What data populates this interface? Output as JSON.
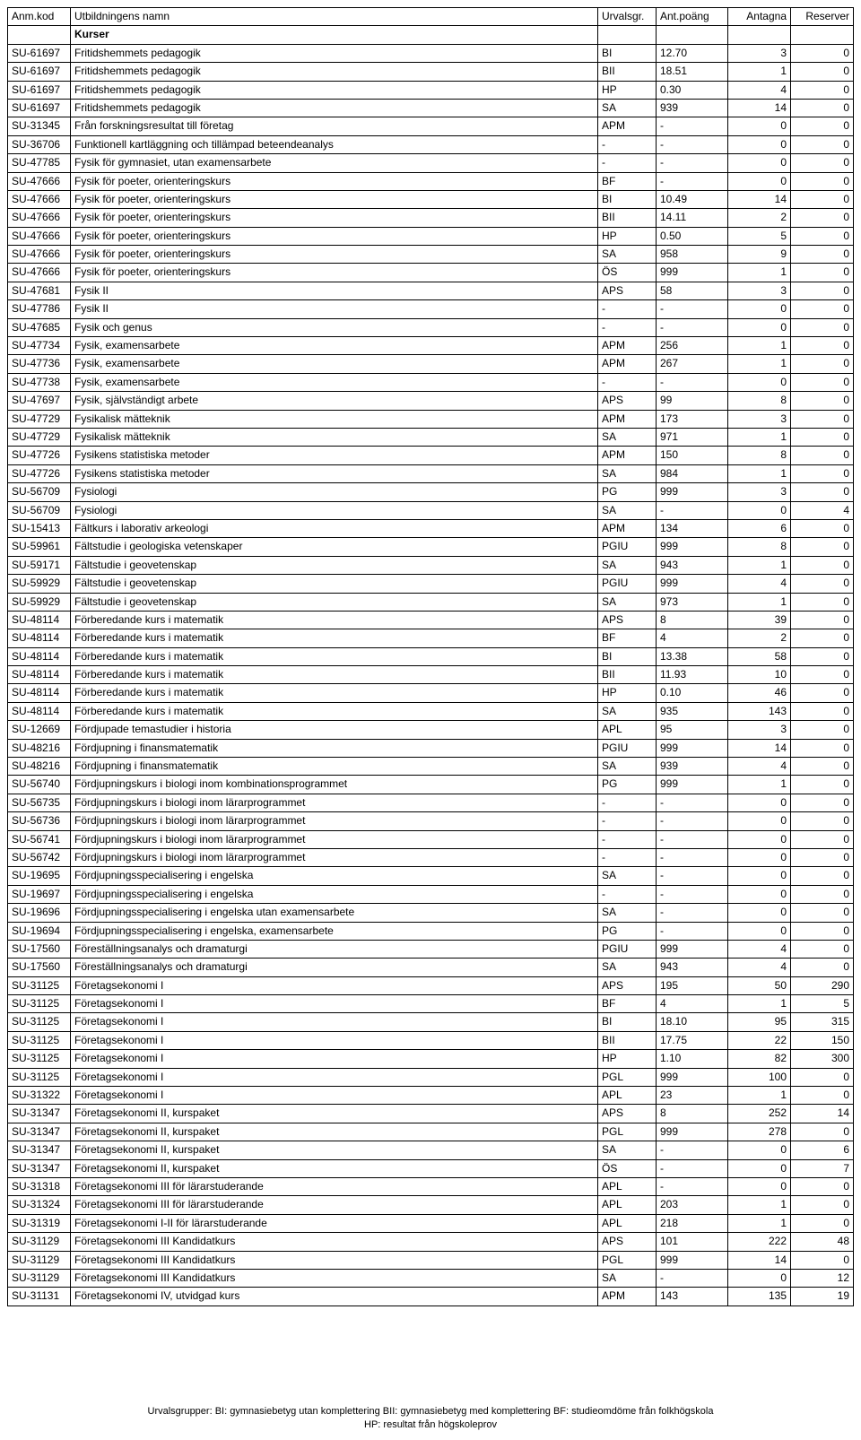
{
  "headers": {
    "code": "Anm.kod",
    "name": "Utbildningens namn",
    "urv": "Urvalsgr.",
    "poang": "Ant.poäng",
    "ant": "Antagna",
    "res": "Reserver"
  },
  "subheader": "Kurser",
  "rows": [
    {
      "code": "SU-61697",
      "name": "Fritidshemmets pedagogik",
      "urv": "BI",
      "poang": "12.70",
      "ant": "3",
      "res": "0"
    },
    {
      "code": "SU-61697",
      "name": "Fritidshemmets pedagogik",
      "urv": "BII",
      "poang": "18.51",
      "ant": "1",
      "res": "0"
    },
    {
      "code": "SU-61697",
      "name": "Fritidshemmets pedagogik",
      "urv": "HP",
      "poang": "0.30",
      "ant": "4",
      "res": "0"
    },
    {
      "code": "SU-61697",
      "name": "Fritidshemmets pedagogik",
      "urv": "SA",
      "poang": "939",
      "ant": "14",
      "res": "0"
    },
    {
      "code": "SU-31345",
      "name": "Från forskningsresultat till företag",
      "urv": "APM",
      "poang": "-",
      "ant": "0",
      "res": "0"
    },
    {
      "code": "SU-36706",
      "name": "Funktionell kartläggning och tillämpad beteendeanalys",
      "urv": "-",
      "poang": "-",
      "ant": "0",
      "res": "0"
    },
    {
      "code": "SU-47785",
      "name": "Fysik för gymnasiet, utan examensarbete",
      "urv": "-",
      "poang": "-",
      "ant": "0",
      "res": "0"
    },
    {
      "code": "SU-47666",
      "name": "Fysik för poeter, orienteringskurs",
      "urv": "BF",
      "poang": "-",
      "ant": "0",
      "res": "0"
    },
    {
      "code": "SU-47666",
      "name": "Fysik för poeter, orienteringskurs",
      "urv": "BI",
      "poang": "10.49",
      "ant": "14",
      "res": "0"
    },
    {
      "code": "SU-47666",
      "name": "Fysik för poeter, orienteringskurs",
      "urv": "BII",
      "poang": "14.11",
      "ant": "2",
      "res": "0"
    },
    {
      "code": "SU-47666",
      "name": "Fysik för poeter, orienteringskurs",
      "urv": "HP",
      "poang": "0.50",
      "ant": "5",
      "res": "0"
    },
    {
      "code": "SU-47666",
      "name": "Fysik för poeter, orienteringskurs",
      "urv": "SA",
      "poang": "958",
      "ant": "9",
      "res": "0"
    },
    {
      "code": "SU-47666",
      "name": "Fysik för poeter, orienteringskurs",
      "urv": "ÖS",
      "poang": "999",
      "ant": "1",
      "res": "0"
    },
    {
      "code": "SU-47681",
      "name": "Fysik II",
      "urv": "APS",
      "poang": "58",
      "ant": "3",
      "res": "0"
    },
    {
      "code": "SU-47786",
      "name": "Fysik II",
      "urv": "-",
      "poang": "-",
      "ant": "0",
      "res": "0"
    },
    {
      "code": "SU-47685",
      "name": "Fysik och genus",
      "urv": "-",
      "poang": "-",
      "ant": "0",
      "res": "0"
    },
    {
      "code": "SU-47734",
      "name": "Fysik, examensarbete",
      "urv": "APM",
      "poang": "256",
      "ant": "1",
      "res": "0"
    },
    {
      "code": "SU-47736",
      "name": "Fysik, examensarbete",
      "urv": "APM",
      "poang": "267",
      "ant": "1",
      "res": "0"
    },
    {
      "code": "SU-47738",
      "name": "Fysik, examensarbete",
      "urv": "-",
      "poang": "-",
      "ant": "0",
      "res": "0"
    },
    {
      "code": "SU-47697",
      "name": "Fysik, självständigt arbete",
      "urv": "APS",
      "poang": "99",
      "ant": "8",
      "res": "0"
    },
    {
      "code": "SU-47729",
      "name": "Fysikalisk mätteknik",
      "urv": "APM",
      "poang": "173",
      "ant": "3",
      "res": "0"
    },
    {
      "code": "SU-47729",
      "name": "Fysikalisk mätteknik",
      "urv": "SA",
      "poang": "971",
      "ant": "1",
      "res": "0"
    },
    {
      "code": "SU-47726",
      "name": "Fysikens statistiska metoder",
      "urv": "APM",
      "poang": "150",
      "ant": "8",
      "res": "0"
    },
    {
      "code": "SU-47726",
      "name": "Fysikens statistiska metoder",
      "urv": "SA",
      "poang": "984",
      "ant": "1",
      "res": "0"
    },
    {
      "code": "SU-56709",
      "name": "Fysiologi",
      "urv": "PG",
      "poang": "999",
      "ant": "3",
      "res": "0"
    },
    {
      "code": "SU-56709",
      "name": "Fysiologi",
      "urv": "SA",
      "poang": "-",
      "ant": "0",
      "res": "4"
    },
    {
      "code": "SU-15413",
      "name": "Fältkurs i laborativ arkeologi",
      "urv": "APM",
      "poang": "134",
      "ant": "6",
      "res": "0"
    },
    {
      "code": "SU-59961",
      "name": "Fältstudie i geologiska vetenskaper",
      "urv": "PGIU",
      "poang": "999",
      "ant": "8",
      "res": "0"
    },
    {
      "code": "SU-59171",
      "name": "Fältstudie i geovetenskap",
      "urv": "SA",
      "poang": "943",
      "ant": "1",
      "res": "0"
    },
    {
      "code": "SU-59929",
      "name": "Fältstudie i geovetenskap",
      "urv": "PGIU",
      "poang": "999",
      "ant": "4",
      "res": "0"
    },
    {
      "code": "SU-59929",
      "name": "Fältstudie i geovetenskap",
      "urv": "SA",
      "poang": "973",
      "ant": "1",
      "res": "0"
    },
    {
      "code": "SU-48114",
      "name": "Förberedande kurs i matematik",
      "urv": "APS",
      "poang": "8",
      "ant": "39",
      "res": "0"
    },
    {
      "code": "SU-48114",
      "name": "Förberedande kurs i matematik",
      "urv": "BF",
      "poang": "4",
      "ant": "2",
      "res": "0"
    },
    {
      "code": "SU-48114",
      "name": "Förberedande kurs i matematik",
      "urv": "BI",
      "poang": "13.38",
      "ant": "58",
      "res": "0"
    },
    {
      "code": "SU-48114",
      "name": "Förberedande kurs i matematik",
      "urv": "BII",
      "poang": "11.93",
      "ant": "10",
      "res": "0"
    },
    {
      "code": "SU-48114",
      "name": "Förberedande kurs i matematik",
      "urv": "HP",
      "poang": "0.10",
      "ant": "46",
      "res": "0"
    },
    {
      "code": "SU-48114",
      "name": "Förberedande kurs i matematik",
      "urv": "SA",
      "poang": "935",
      "ant": "143",
      "res": "0"
    },
    {
      "code": "SU-12669",
      "name": "Fördjupade temastudier i historia",
      "urv": "APL",
      "poang": "95",
      "ant": "3",
      "res": "0"
    },
    {
      "code": "SU-48216",
      "name": "Fördjupning i finansmatematik",
      "urv": "PGIU",
      "poang": "999",
      "ant": "14",
      "res": "0"
    },
    {
      "code": "SU-48216",
      "name": "Fördjupning i finansmatematik",
      "urv": "SA",
      "poang": "939",
      "ant": "4",
      "res": "0"
    },
    {
      "code": "SU-56740",
      "name": "Fördjupningskurs i biologi inom kombinationsprogrammet",
      "urv": "PG",
      "poang": "999",
      "ant": "1",
      "res": "0"
    },
    {
      "code": "SU-56735",
      "name": "Fördjupningskurs i biologi inom lärarprogrammet",
      "urv": "-",
      "poang": "-",
      "ant": "0",
      "res": "0"
    },
    {
      "code": "SU-56736",
      "name": "Fördjupningskurs i biologi inom lärarprogrammet",
      "urv": "-",
      "poang": "-",
      "ant": "0",
      "res": "0"
    },
    {
      "code": "SU-56741",
      "name": "Fördjupningskurs i biologi inom lärarprogrammet",
      "urv": "-",
      "poang": "-",
      "ant": "0",
      "res": "0"
    },
    {
      "code": "SU-56742",
      "name": "Fördjupningskurs i biologi inom lärarprogrammet",
      "urv": "-",
      "poang": "-",
      "ant": "0",
      "res": "0"
    },
    {
      "code": "SU-19695",
      "name": "Fördjupningsspecialisering i engelska",
      "urv": "SA",
      "poang": "-",
      "ant": "0",
      "res": "0"
    },
    {
      "code": "SU-19697",
      "name": "Fördjupningsspecialisering i engelska",
      "urv": "-",
      "poang": "-",
      "ant": "0",
      "res": "0"
    },
    {
      "code": "SU-19696",
      "name": "Fördjupningsspecialisering i engelska utan examensarbete",
      "urv": "SA",
      "poang": "-",
      "ant": "0",
      "res": "0"
    },
    {
      "code": "SU-19694",
      "name": "Fördjupningsspecialisering i engelska, examensarbete",
      "urv": "PG",
      "poang": "-",
      "ant": "0",
      "res": "0"
    },
    {
      "code": "SU-17560",
      "name": "Föreställningsanalys och dramaturgi",
      "urv": "PGIU",
      "poang": "999",
      "ant": "4",
      "res": "0"
    },
    {
      "code": "SU-17560",
      "name": "Föreställningsanalys och dramaturgi",
      "urv": "SA",
      "poang": "943",
      "ant": "4",
      "res": "0"
    },
    {
      "code": "SU-31125",
      "name": "Företagsekonomi I",
      "urv": "APS",
      "poang": "195",
      "ant": "50",
      "res": "290"
    },
    {
      "code": "SU-31125",
      "name": "Företagsekonomi I",
      "urv": "BF",
      "poang": "4",
      "ant": "1",
      "res": "5"
    },
    {
      "code": "SU-31125",
      "name": "Företagsekonomi I",
      "urv": "BI",
      "poang": "18.10",
      "ant": "95",
      "res": "315"
    },
    {
      "code": "SU-31125",
      "name": "Företagsekonomi I",
      "urv": "BII",
      "poang": "17.75",
      "ant": "22",
      "res": "150"
    },
    {
      "code": "SU-31125",
      "name": "Företagsekonomi I",
      "urv": "HP",
      "poang": "1.10",
      "ant": "82",
      "res": "300"
    },
    {
      "code": "SU-31125",
      "name": "Företagsekonomi I",
      "urv": "PGL",
      "poang": "999",
      "ant": "100",
      "res": "0"
    },
    {
      "code": "SU-31322",
      "name": "Företagsekonomi I",
      "urv": "APL",
      "poang": "23",
      "ant": "1",
      "res": "0"
    },
    {
      "code": "SU-31347",
      "name": "Företagsekonomi II, kurspaket",
      "urv": "APS",
      "poang": "8",
      "ant": "252",
      "res": "14"
    },
    {
      "code": "SU-31347",
      "name": "Företagsekonomi II, kurspaket",
      "urv": "PGL",
      "poang": "999",
      "ant": "278",
      "res": "0"
    },
    {
      "code": "SU-31347",
      "name": "Företagsekonomi II, kurspaket",
      "urv": "SA",
      "poang": "-",
      "ant": "0",
      "res": "6"
    },
    {
      "code": "SU-31347",
      "name": "Företagsekonomi II, kurspaket",
      "urv": "ÖS",
      "poang": "-",
      "ant": "0",
      "res": "7"
    },
    {
      "code": "SU-31318",
      "name": "Företagsekonomi III för lärarstuderande",
      "urv": "APL",
      "poang": "-",
      "ant": "0",
      "res": "0"
    },
    {
      "code": "SU-31324",
      "name": "Företagsekonomi III för lärarstuderande",
      "urv": "APL",
      "poang": "203",
      "ant": "1",
      "res": "0"
    },
    {
      "code": "SU-31319",
      "name": "Företagsekonomi I-II för lärarstuderande",
      "urv": "APL",
      "poang": "218",
      "ant": "1",
      "res": "0"
    },
    {
      "code": "SU-31129",
      "name": "Företagsekonomi III Kandidatkurs",
      "urv": "APS",
      "poang": "101",
      "ant": "222",
      "res": "48"
    },
    {
      "code": "SU-31129",
      "name": "Företagsekonomi III Kandidatkurs",
      "urv": "PGL",
      "poang": "999",
      "ant": "14",
      "res": "0"
    },
    {
      "code": "SU-31129",
      "name": "Företagsekonomi III Kandidatkurs",
      "urv": "SA",
      "poang": "-",
      "ant": "0",
      "res": "12"
    },
    {
      "code": "SU-31131",
      "name": "Företagsekonomi IV, utvidgad kurs",
      "urv": "APM",
      "poang": "143",
      "ant": "135",
      "res": "19"
    }
  ],
  "footer": {
    "line1": "Urvalsgrupper:  BI: gymnasiebetyg utan komplettering  BII: gymnasiebetyg med komplettering  BF: studieomdöme från folkhögskola",
    "line2": "HP: resultat från högskoleprov"
  }
}
